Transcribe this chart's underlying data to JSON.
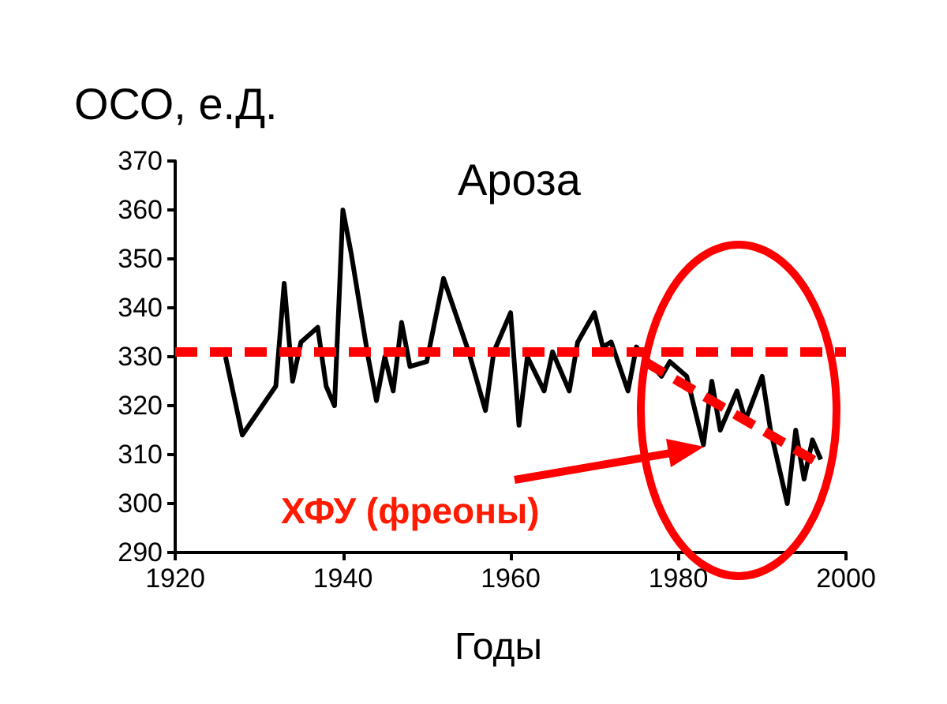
{
  "chart_data": {
    "type": "line",
    "ylabel": "ОСО, е.Д.",
    "xlabel": "Годы",
    "annotations": [
      "Ароза",
      "ХФУ (фреоны)"
    ],
    "series": [
      {
        "color": "#000000",
        "x": [
          1926,
          1928,
          1932,
          1933,
          1934,
          1935,
          1937,
          1938,
          1939,
          1940,
          1941,
          1943,
          1944,
          1945,
          1946,
          1947,
          1948,
          1950,
          1952,
          1955,
          1957,
          1958,
          1960,
          1961,
          1962,
          1964,
          1965,
          1967,
          1968,
          1970,
          1971,
          1972,
          1974,
          1975,
          1978,
          1979,
          1981,
          1983,
          1984,
          1985,
          1987,
          1988,
          1990,
          1991,
          1993,
          1994,
          1995,
          1996,
          1997
        ],
        "values": [
          330,
          314,
          324,
          345,
          325,
          333,
          336,
          324,
          320,
          360,
          351,
          330,
          321,
          330,
          323,
          337,
          328,
          329,
          346,
          331,
          319,
          331,
          339,
          316,
          330,
          323,
          331,
          323,
          333,
          339,
          332,
          333,
          323,
          332,
          326,
          329,
          326,
          312,
          325,
          315,
          323,
          317,
          326,
          315,
          300,
          315,
          305,
          313,
          309
        ]
      },
      {
        "type": "line",
        "color": "#ff0000",
        "line_style": "dashed",
        "x": [
          1976,
          1997
        ],
        "values": [
          329,
          308
        ]
      }
    ],
    "ref_lines": [
      {
        "axis": "y",
        "value": 331,
        "color": "#ff0000",
        "line_style": "dashed"
      }
    ],
    "xlim": [
      1920,
      2000
    ],
    "xticks": [
      1920,
      1940,
      1960,
      1980,
      2000
    ],
    "ylim": [
      290,
      370
    ],
    "yticks": [
      290,
      300,
      310,
      320,
      330,
      340,
      350,
      360,
      370
    ],
    "grid": false,
    "marker": "none",
    "line_style": "solid"
  }
}
